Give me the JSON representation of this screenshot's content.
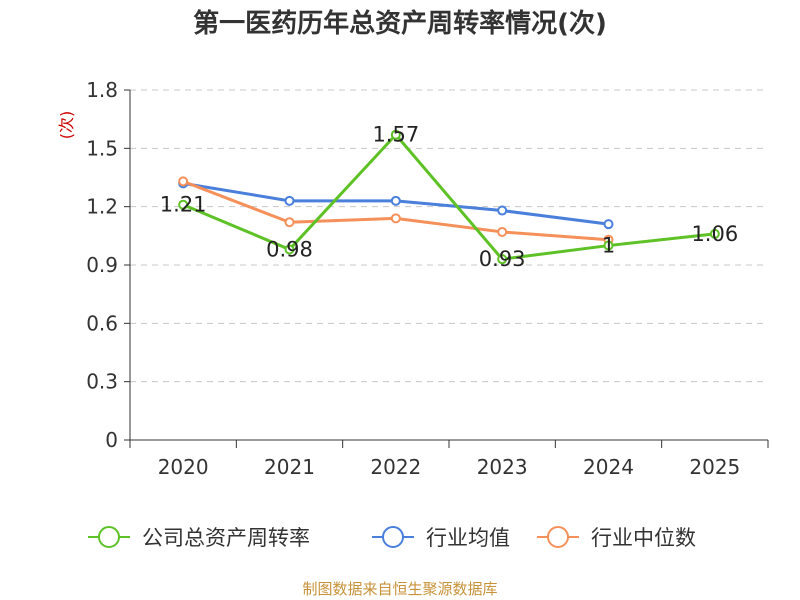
{
  "title": "第一医药历年总资产周转率情况(次)",
  "source": "制图数据来自恒生聚源数据库",
  "chart_data": {
    "type": "line",
    "title": "第一医药历年总资产周转率情况(次)",
    "ylabel": "(次)",
    "xlabel": "",
    "categories": [
      "2020",
      "2021",
      "2022",
      "2023",
      "2024",
      "2025"
    ],
    "ylim": [
      0,
      1.8
    ],
    "yticks": [
      "0",
      "0.3",
      "0.6",
      "0.9",
      "1.2",
      "1.5",
      "1.8"
    ],
    "grid": true,
    "legend_position": "bottom",
    "series": [
      {
        "name": "公司总资产周转率",
        "color": "#5ec226",
        "values": [
          1.21,
          0.98,
          1.57,
          0.93,
          1.0,
          1.06
        ],
        "labels": [
          "1.21",
          "0.98",
          "1.57",
          "0.93",
          "1",
          "1.06"
        ]
      },
      {
        "name": "行业均值",
        "color": "#4a7fdc",
        "values": [
          1.32,
          1.23,
          1.23,
          1.18,
          1.11,
          null
        ]
      },
      {
        "name": "行业中位数",
        "color": "#f5905a",
        "values": [
          1.33,
          1.12,
          1.14,
          1.07,
          1.03,
          null
        ]
      }
    ]
  }
}
